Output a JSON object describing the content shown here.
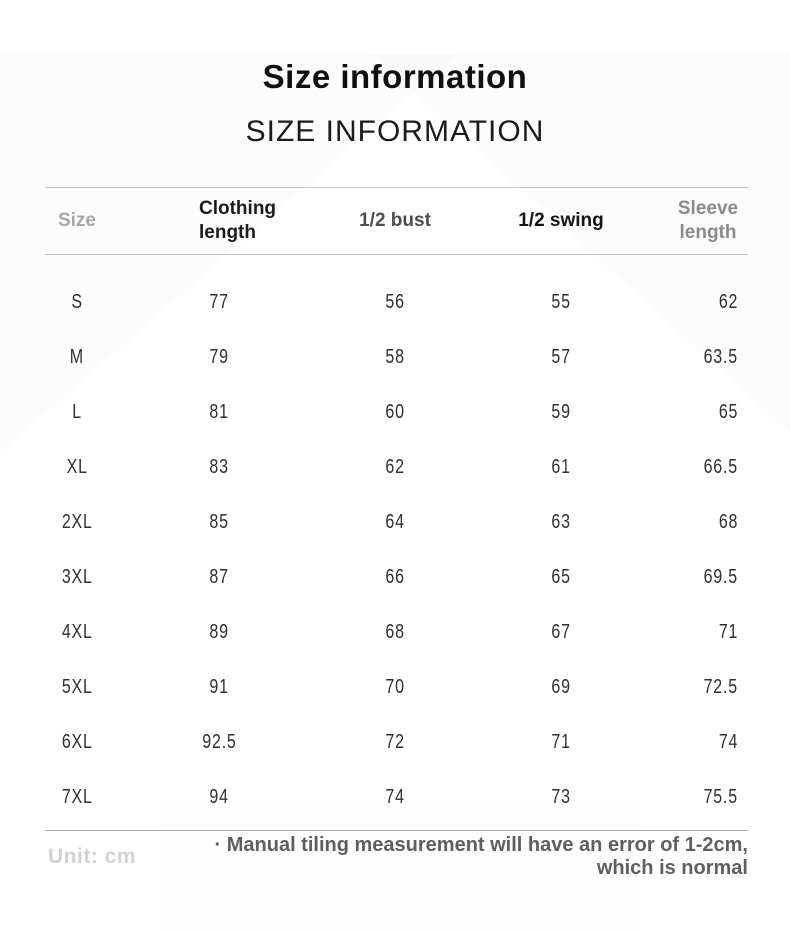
{
  "page": {
    "title": "Size information",
    "subtitle": "SIZE INFORMATION"
  },
  "table": {
    "columns": [
      {
        "label": "Size",
        "color": "#a9a9a9"
      },
      {
        "label": "Clothing length",
        "color": "#1b1b1b"
      },
      {
        "label": "1/2 bust",
        "color": "#4d4d4d"
      },
      {
        "label": "1/2 swing",
        "color": "#141414"
      },
      {
        "label": "Sleeve length",
        "color": "#8c8c8c"
      }
    ],
    "rows": [
      {
        "size": "S",
        "clothing_length": "77",
        "half_bust": "56",
        "half_swing": "55",
        "sleeve_length": "62"
      },
      {
        "size": "M",
        "clothing_length": "79",
        "half_bust": "58",
        "half_swing": "57",
        "sleeve_length": "63.5"
      },
      {
        "size": "L",
        "clothing_length": "81",
        "half_bust": "60",
        "half_swing": "59",
        "sleeve_length": "65"
      },
      {
        "size": "XL",
        "clothing_length": "83",
        "half_bust": "62",
        "half_swing": "61",
        "sleeve_length": "66.5"
      },
      {
        "size": "2XL",
        "clothing_length": "85",
        "half_bust": "64",
        "half_swing": "63",
        "sleeve_length": "68"
      },
      {
        "size": "3XL",
        "clothing_length": "87",
        "half_bust": "66",
        "half_swing": "65",
        "sleeve_length": "69.5"
      },
      {
        "size": "4XL",
        "clothing_length": "89",
        "half_bust": "68",
        "half_swing": "67",
        "sleeve_length": "71"
      },
      {
        "size": "5XL",
        "clothing_length": "91",
        "half_bust": "70",
        "half_swing": "69",
        "sleeve_length": "72.5"
      },
      {
        "size": "6XL",
        "clothing_length": "92.5",
        "half_bust": "72",
        "half_swing": "71",
        "sleeve_length": "74"
      },
      {
        "size": "7XL",
        "clothing_length": "94",
        "half_bust": "74",
        "half_swing": "73",
        "sleeve_length": "75.5"
      }
    ]
  },
  "footer": {
    "unit_label": "Unit: cm",
    "note_lines": [
      "· Manual tiling measurement will have an error of 1-2cm,",
      "which is normal"
    ]
  }
}
